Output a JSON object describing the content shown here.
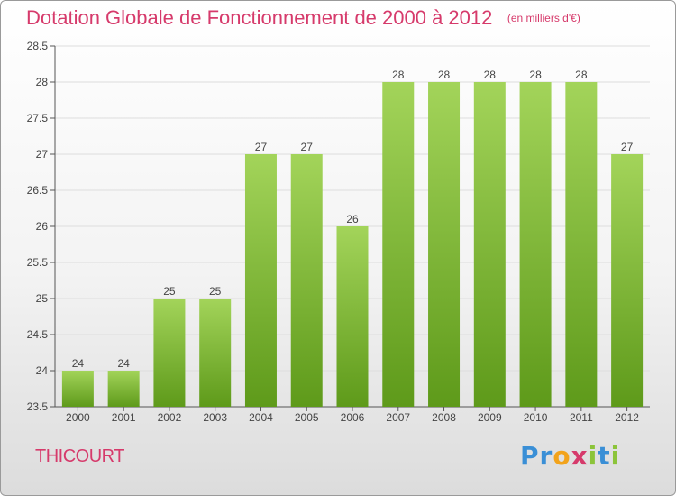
{
  "header": {
    "title": "Dotation Globale de Fonctionnement de 2000 à 2012",
    "unit": "(en milliers d'€)"
  },
  "footer": {
    "commune": "THICOURT"
  },
  "brand": {
    "letters": [
      "P",
      "r",
      "o",
      "x",
      "i",
      "t",
      "i"
    ],
    "colors": [
      "#3a8fd6",
      "#3a8fd6",
      "#f2a31b",
      "#d63a6b",
      "#8cc43a",
      "#3a8fd6",
      "#8cc43a"
    ]
  },
  "colors": {
    "bar_top": "#a3d45a",
    "bar_bottom": "#5e9a1a",
    "title": "#d63a6b",
    "grid": "#dddddd"
  },
  "chart_data": {
    "type": "bar",
    "title": "Dotation Globale de Fonctionnement de 2000 à 2012",
    "ylabel": "(en milliers d'€)",
    "xlabel": "",
    "categories": [
      "2000",
      "2001",
      "2002",
      "2003",
      "2004",
      "2005",
      "2006",
      "2007",
      "2008",
      "2009",
      "2010",
      "2011",
      "2012"
    ],
    "values": [
      24,
      24,
      25,
      25,
      27,
      27,
      26,
      28,
      28,
      28,
      28,
      28,
      27
    ],
    "ylim": [
      23.5,
      28.5
    ],
    "yticks": [
      "23.5",
      "24",
      "24.5",
      "25",
      "25.5",
      "26",
      "26.5",
      "27",
      "27.5",
      "28",
      "28.5"
    ],
    "grid": true,
    "legend": "none"
  }
}
